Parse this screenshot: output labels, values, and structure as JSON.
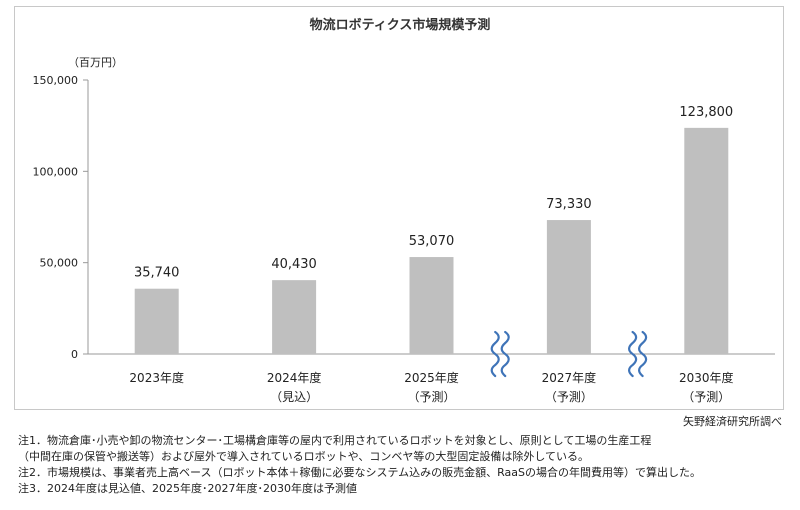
{
  "chart_data": {
    "type": "bar",
    "title": "物流ロボティクス市場規模予測",
    "unit_label": "（百万円）",
    "ylim": [
      0,
      150000
    ],
    "yticks": [
      0,
      50000,
      100000,
      150000
    ],
    "ytick_labels": [
      "0",
      "50,000",
      "100,000",
      "150,000"
    ],
    "grid": false,
    "categories": [
      "2023年度",
      "2024年度",
      "2025年度",
      "2027年度",
      "2030年度"
    ],
    "category_sublabels": [
      "",
      "（見込）",
      "（予測）",
      "（予測）",
      "（予測）"
    ],
    "values": [
      35740,
      40430,
      53070,
      73330,
      123800
    ],
    "value_labels": [
      "35,740",
      "40,430",
      "53,070",
      "73,330",
      "123,800"
    ],
    "axis_breaks_between": [
      [
        2,
        3
      ],
      [
        3,
        4
      ]
    ],
    "colors": {
      "bar": "#bfbfbf",
      "axis": "#9a9a9a",
      "break": "#3f74b8"
    }
  },
  "source": "矢野経済研究所調べ",
  "notes": [
    "注1．物流倉庫･小売や卸の物流センター･工場構倉庫等の屋内で利用されているロボットを対象とし、原則として工場の生産工程",
    "（中間在庫の保管や搬送等）および屋外で導入されているロボットや、コンベヤ等の大型固定設備は除外している。",
    "注2．市場規模は、事業者売上高ベース（ロボット本体＋稼働に必要なシステム込みの販売金額、RaaSの場合の年間費用等）で算出した。",
    "注3．2024年度は見込値、2025年度･2027年度･2030年度は予測値"
  ]
}
